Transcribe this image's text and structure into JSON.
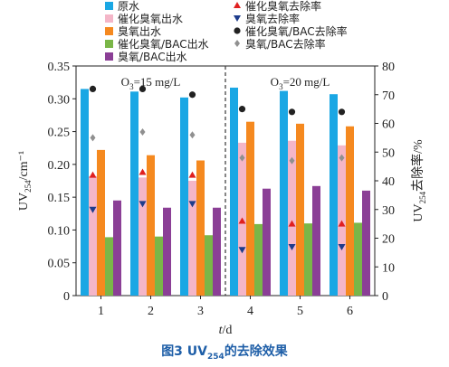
{
  "chart_data": {
    "type": "bar",
    "categories": [
      "1",
      "2",
      "3",
      "4",
      "5",
      "6"
    ],
    "xlabel": "t/d",
    "ylabel": "UV254/cm⁻¹",
    "y2label": "UV254去除率/%",
    "ylim": [
      0,
      0.35
    ],
    "y2lim": [
      0,
      80
    ],
    "yticks": [
      "0",
      "0.05",
      "0.10",
      "0.15",
      "0.20",
      "0.25",
      "0.30",
      "0.35"
    ],
    "y2ticks": [
      "0",
      "10",
      "20",
      "30",
      "40",
      "50",
      "60",
      "70",
      "80"
    ],
    "series": [
      {
        "name": "原水",
        "kind": "bar",
        "axis": "left",
        "color": "#1aa7e4",
        "values": [
          0.315,
          0.311,
          0.302,
          0.317,
          0.312,
          0.307
        ]
      },
      {
        "name": "催化臭氧出水",
        "kind": "bar",
        "axis": "left",
        "color": "#f4b6c8",
        "values": [
          0.182,
          0.18,
          0.175,
          0.233,
          0.236,
          0.229
        ]
      },
      {
        "name": "臭氧出水",
        "kind": "bar",
        "axis": "left",
        "color": "#f5891f",
        "values": [
          0.222,
          0.214,
          0.206,
          0.265,
          0.262,
          0.258
        ]
      },
      {
        "name": "催化臭氧/BAC出水",
        "kind": "bar",
        "axis": "left",
        "color": "#7ab648",
        "values": [
          0.089,
          0.09,
          0.092,
          0.109,
          0.11,
          0.111
        ]
      },
      {
        "name": "臭氧/BAC出水",
        "kind": "bar",
        "axis": "left",
        "color": "#8b3f96",
        "values": [
          0.145,
          0.134,
          0.134,
          0.163,
          0.167,
          0.16
        ]
      },
      {
        "name": "催化臭氧去除率",
        "kind": "marker",
        "marker": "triangle-up",
        "axis": "right",
        "color": "#e02020",
        "values": [
          42,
          43,
          42,
          26,
          25,
          25
        ]
      },
      {
        "name": "臭氧去除率",
        "kind": "marker",
        "marker": "triangle-down",
        "axis": "right",
        "color": "#1e3c8c",
        "values": [
          30,
          32,
          32,
          16,
          17,
          17
        ]
      },
      {
        "name": "催化臭氧/BAC去除率",
        "kind": "marker",
        "marker": "circle",
        "axis": "right",
        "color": "#222222",
        "values": [
          72,
          72,
          70,
          65,
          64,
          64
        ]
      },
      {
        "name": "臭氧/BAC去除率",
        "kind": "marker",
        "marker": "diamond",
        "axis": "right",
        "color": "#909090",
        "values": [
          55,
          57,
          56,
          48,
          47,
          48
        ]
      }
    ],
    "annotations": [
      "O3=15 mg/L",
      "O3=20 mg/L"
    ],
    "divider_between": [
      "3",
      "4"
    ]
  },
  "caption": {
    "prefix": "图3  UV",
    "sub": "254",
    "suffix": "的去除效果"
  }
}
